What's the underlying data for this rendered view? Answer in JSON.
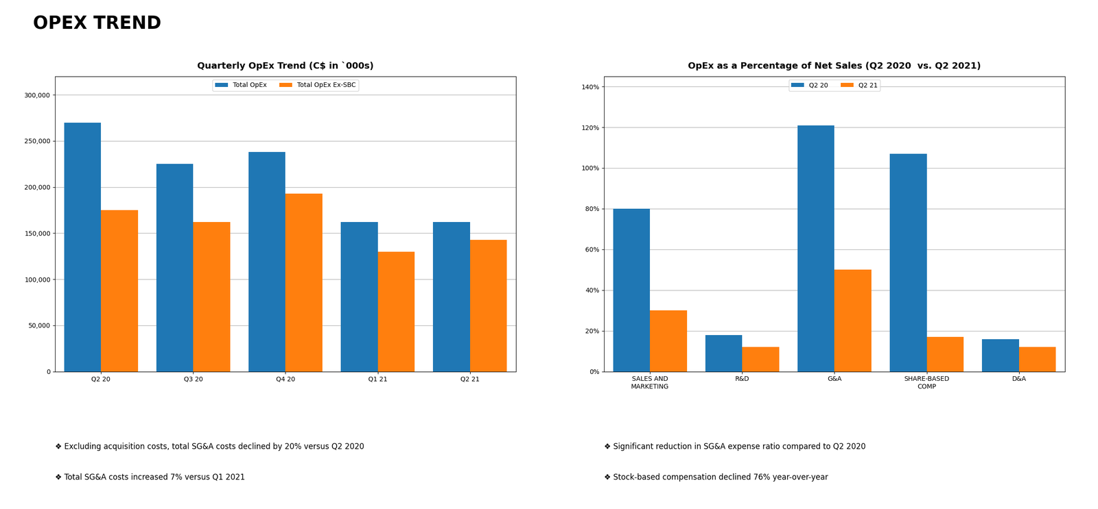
{
  "title": "OPEX TREND",
  "chart_data": [
    {
      "type": "bar",
      "title": "Quarterly OpEx Trend (C$ in `000s)",
      "categories": [
        "Q2 20",
        "Q3 20",
        "Q4 20",
        "Q1 21",
        "Q2 21"
      ],
      "series": [
        {
          "name": "Total OpEx",
          "values": [
            270000,
            225000,
            238000,
            162000,
            162000
          ]
        },
        {
          "name": "Total OpEx Ex-SBC",
          "values": [
            175000,
            162000,
            193000,
            130000,
            143000
          ]
        }
      ],
      "ylim": [
        0,
        320000
      ],
      "yticks": [
        0,
        {
          "value": 50000,
          "label": "50,000"
        },
        {
          "value": 100000,
          "label": "100,000"
        },
        {
          "value": 150000,
          "label": "150,000"
        },
        {
          "value": 200000,
          "label": "200,000"
        },
        {
          "value": 250000,
          "label": "250,000"
        },
        {
          "value": 300000,
          "label": "300,000"
        }
      ],
      "grid": true,
      "legend": "upper center",
      "annotations": [
        "❖ Excluding acquisition costs, total SG&A costs declined by 20% versus Q2 2020",
        "❖ Total SG&A costs increased 7% versus Q1 2021"
      ]
    },
    {
      "type": "bar",
      "title": "OpEx as a Percentage of Net Sales (Q2 2020  vs. Q2 2021)",
      "categories": [
        "SALES AND\nMARKETING",
        "R&D",
        "G&A",
        "SHARE-BASED\nCOMP",
        "D&A"
      ],
      "series": [
        {
          "name": "Q2 20",
          "values": [
            0.8,
            0.18,
            1.21,
            1.07,
            0.16
          ]
        },
        {
          "name": "Q2 21",
          "values": [
            0.3,
            0.12,
            0.5,
            0.17,
            0.12
          ]
        }
      ],
      "ylim": [
        0,
        1.45
      ],
      "yticks": [
        {
          "value": 0,
          "label": "0%"
        },
        {
          "value": 0.2,
          "label": "20%"
        },
        {
          "value": 0.4,
          "label": "40%"
        },
        {
          "value": 0.6,
          "label": "60%"
        },
        {
          "value": 0.8,
          "label": "80%"
        },
        {
          "value": 1.0,
          "label": "100%"
        },
        {
          "value": 1.2,
          "label": "120%"
        },
        {
          "value": 1.4,
          "label": "140%"
        }
      ],
      "grid": true,
      "legend": "upper center",
      "annotations": [
        "❖ Significant reduction in SG&A expense ratio compared to Q2 2020",
        "❖ Stock-based compensation declined 76% year-over-year"
      ]
    }
  ]
}
